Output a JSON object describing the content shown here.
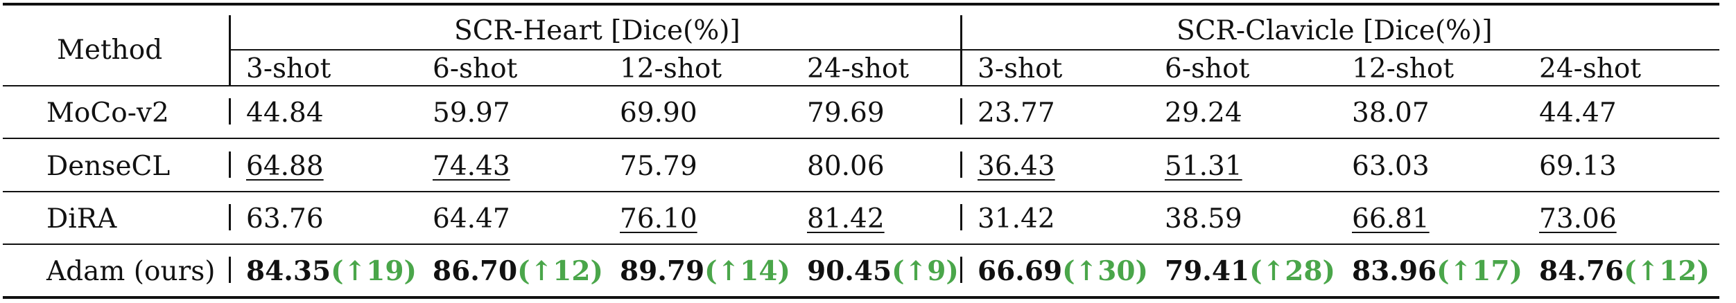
{
  "table": {
    "header": {
      "method": "Method",
      "group1": "SCR-Heart [Dice(%)]",
      "group2": "SCR-Clavicle [Dice(%)]",
      "shots": [
        "3-shot",
        "6-shot",
        "12-shot",
        "24-shot",
        "3-shot",
        "6-shot",
        "12-shot",
        "24-shot"
      ]
    },
    "rows": [
      {
        "method": "MoCo-v2",
        "cells": [
          {
            "value": "44.84",
            "gain": ""
          },
          {
            "value": "59.97",
            "gain": ""
          },
          {
            "value": "69.90",
            "gain": ""
          },
          {
            "value": "79.69",
            "gain": ""
          },
          {
            "value": "23.77",
            "gain": ""
          },
          {
            "value": "29.24",
            "gain": ""
          },
          {
            "value": "38.07",
            "gain": ""
          },
          {
            "value": "44.47",
            "gain": ""
          }
        ]
      },
      {
        "method": "DenseCL",
        "cells": [
          {
            "value": "64.88",
            "gain": ""
          },
          {
            "value": "74.43",
            "gain": ""
          },
          {
            "value": "75.79",
            "gain": ""
          },
          {
            "value": "80.06",
            "gain": ""
          },
          {
            "value": "36.43",
            "gain": ""
          },
          {
            "value": "51.31",
            "gain": ""
          },
          {
            "value": "63.03",
            "gain": ""
          },
          {
            "value": "69.13",
            "gain": ""
          }
        ]
      },
      {
        "method": "DiRA",
        "cells": [
          {
            "value": "63.76",
            "gain": ""
          },
          {
            "value": "64.47",
            "gain": ""
          },
          {
            "value": "76.10",
            "gain": ""
          },
          {
            "value": "81.42",
            "gain": ""
          },
          {
            "value": "31.42",
            "gain": ""
          },
          {
            "value": "38.59",
            "gain": ""
          },
          {
            "value": "66.81",
            "gain": ""
          },
          {
            "value": "73.06",
            "gain": ""
          }
        ]
      },
      {
        "method": "Adam (ours)",
        "cells": [
          {
            "value": "84.35",
            "gain": "(↑19)"
          },
          {
            "value": "86.70",
            "gain": "(↑12)"
          },
          {
            "value": "89.79",
            "gain": "(↑14)"
          },
          {
            "value": "90.45",
            "gain": "(↑9)"
          },
          {
            "value": "66.69",
            "gain": "(↑30)"
          },
          {
            "value": "79.41",
            "gain": "(↑28)"
          },
          {
            "value": "83.96",
            "gain": "(↑17)"
          },
          {
            "value": "84.76",
            "gain": "(↑12)"
          }
        ]
      }
    ],
    "colors": {
      "text": "#111111",
      "gain": "#4aa64a",
      "rule": "#111111"
    }
  }
}
